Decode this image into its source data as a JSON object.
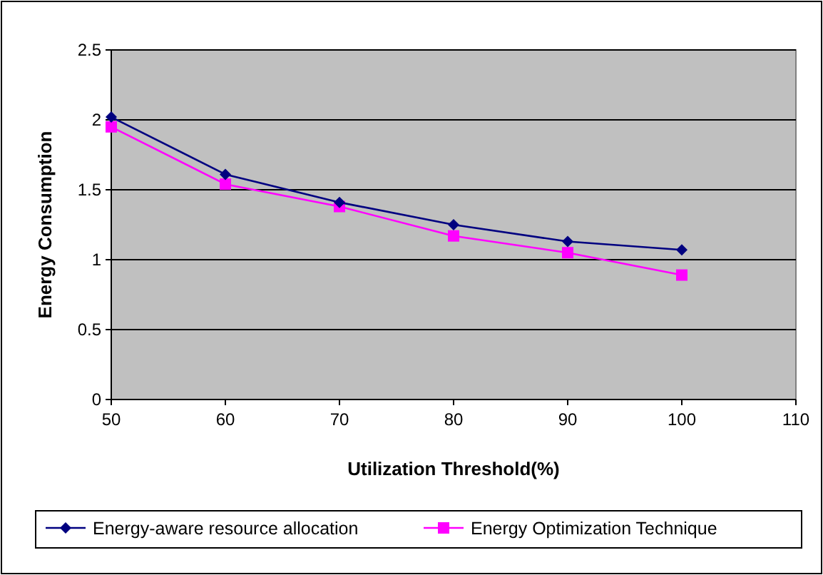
{
  "chart_data": {
    "type": "line",
    "xlabel": "Utilization Threshold(%)",
    "ylabel": "Energy Consumption",
    "x": [
      50,
      60,
      70,
      80,
      90,
      100
    ],
    "series": [
      {
        "name": "Energy-aware resource allocation",
        "color": "#000080",
        "marker": "diamond",
        "values": [
          2.02,
          1.61,
          1.41,
          1.25,
          1.13,
          1.07
        ]
      },
      {
        "name": "Energy Optimization Technique",
        "color": "#ff00ff",
        "marker": "square",
        "values": [
          1.95,
          1.54,
          1.38,
          1.17,
          1.05,
          0.89
        ]
      }
    ],
    "xlim": [
      50,
      110
    ],
    "xticks": [
      50,
      60,
      70,
      80,
      90,
      100,
      110
    ],
    "ylim": [
      0,
      2.5
    ],
    "yticks": [
      0,
      0.5,
      1,
      1.5,
      2,
      2.5
    ],
    "grid": "y",
    "legend": "bottom",
    "line_style": "solid"
  }
}
